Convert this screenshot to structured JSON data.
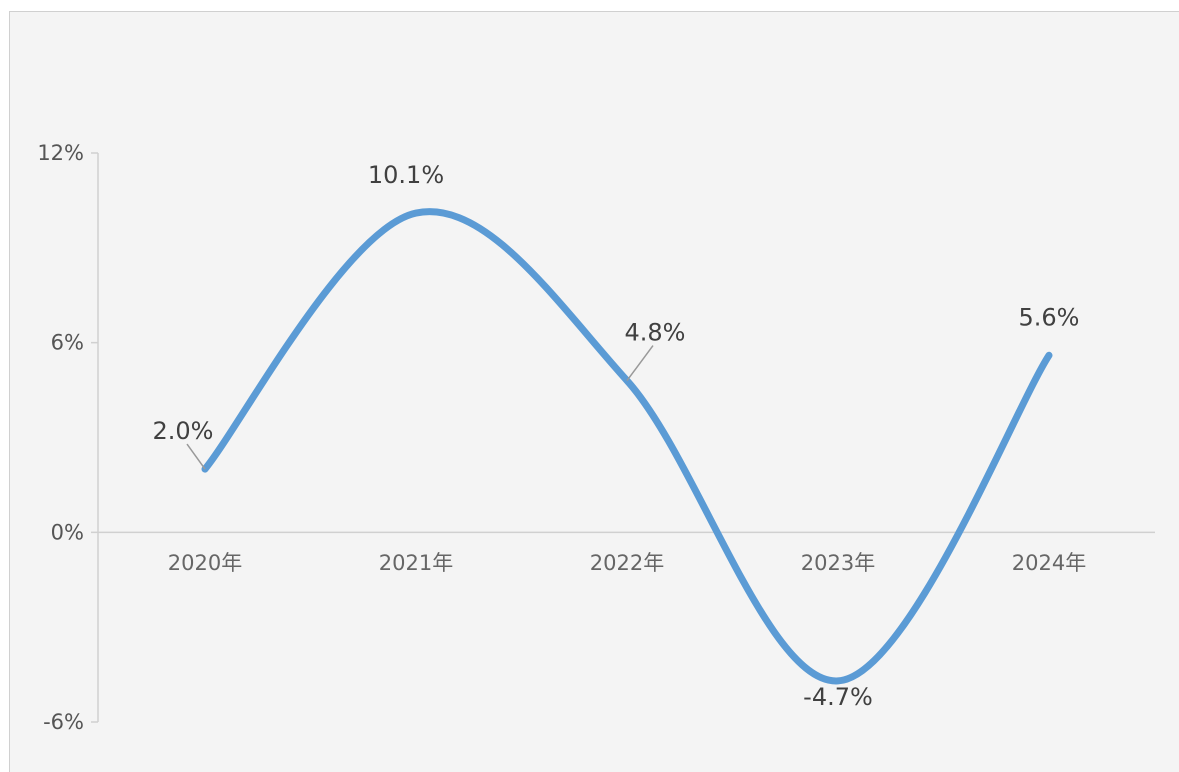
{
  "chart_data": {
    "type": "line",
    "smooth": true,
    "categories": [
      "2020年",
      "2021年",
      "2022年",
      "2023年",
      "2024年"
    ],
    "series": [
      {
        "values": [
          2.0,
          10.1,
          4.8,
          -4.7,
          5.6
        ],
        "data_labels": [
          "2.0%",
          "10.1%",
          "4.8%",
          "-4.7%",
          "5.6%"
        ]
      }
    ],
    "y_ticks": [
      12,
      6,
      0,
      -6
    ],
    "y_tick_labels": [
      "12%",
      "6%",
      "0%",
      "-6%"
    ],
    "ylim": [
      -6,
      12
    ],
    "title": "",
    "xlabel": "",
    "ylabel": "",
    "grid": false,
    "legend": "none",
    "line_color": "#5b9bd5",
    "axis_color": "#d0d0d0",
    "background": "#f4f4f4"
  }
}
